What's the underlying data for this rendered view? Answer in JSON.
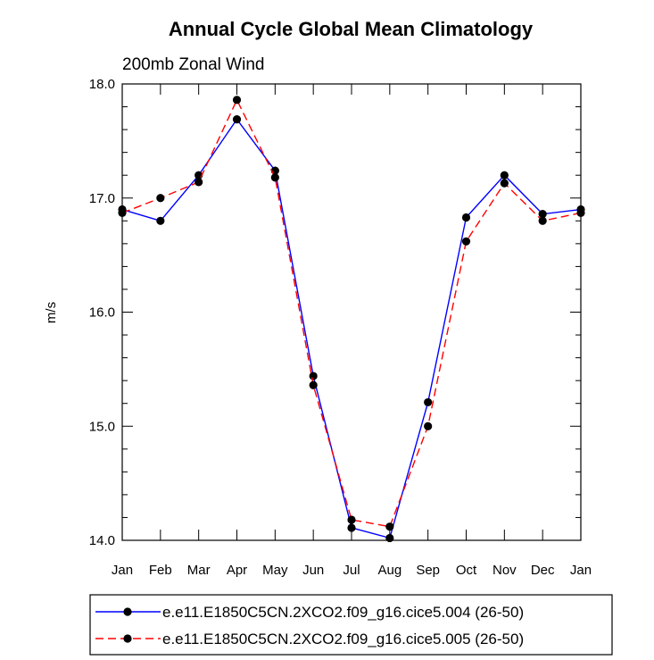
{
  "chart_data": {
    "type": "line",
    "title": "Annual Cycle Global Mean Climatology",
    "subtitle": "200mb Zonal Wind",
    "xlabel": "",
    "ylabel": "m/s",
    "ylim": [
      14.0,
      18.0
    ],
    "yticks": [
      "14.0",
      "15.0",
      "16.0",
      "17.0",
      "18.0"
    ],
    "categories": [
      "Jan",
      "Feb",
      "Mar",
      "Apr",
      "May",
      "Jun",
      "Jul",
      "Aug",
      "Sep",
      "Oct",
      "Nov",
      "Dec",
      "Jan"
    ],
    "grid": false,
    "legend_position": "bottom",
    "series": [
      {
        "name": "e.e11.E1850C5CN.2XCO2.f09_g16.cice5.004 (26-50)",
        "color": "#0000ff",
        "style": "solid",
        "values": [
          16.9,
          16.8,
          17.2,
          17.69,
          17.24,
          15.44,
          14.11,
          14.02,
          15.21,
          16.83,
          17.2,
          16.86,
          16.9
        ]
      },
      {
        "name": "e.e11.E1850C5CN.2XCO2.f09_g16.cice5.005 (26-50)",
        "color": "#ff0000",
        "style": "dashed",
        "values": [
          16.87,
          17.0,
          17.14,
          17.86,
          17.18,
          15.36,
          14.18,
          14.12,
          15.0,
          16.62,
          17.13,
          16.8,
          16.87
        ]
      }
    ]
  }
}
